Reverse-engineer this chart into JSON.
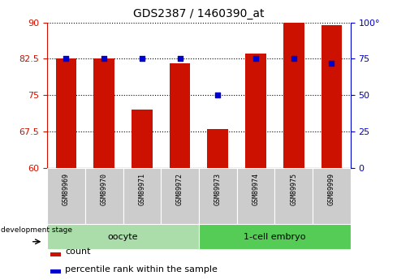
{
  "title": "GDS2387 / 1460390_at",
  "samples": [
    "GSM89969",
    "GSM89970",
    "GSM89971",
    "GSM89972",
    "GSM89973",
    "GSM89974",
    "GSM89975",
    "GSM89999"
  ],
  "groups": [
    {
      "label": "oocyte",
      "indices": [
        0,
        1,
        2,
        3
      ],
      "color": "#90EE90"
    },
    {
      "label": "1-cell embryo",
      "indices": [
        4,
        5,
        6,
        7
      ],
      "color": "#32CD32"
    }
  ],
  "count_values": [
    82.5,
    82.5,
    72.0,
    81.5,
    68.0,
    83.5,
    90.0,
    89.5
  ],
  "percentile_values": [
    75,
    75,
    75,
    75,
    50,
    75,
    75,
    72
  ],
  "ymin": 60,
  "ymax": 90,
  "yticks_left": [
    60,
    67.5,
    75,
    82.5,
    90
  ],
  "yticks_right": [
    0,
    25,
    50,
    75,
    100
  ],
  "bar_color": "#CC1100",
  "blue_color": "#0000CC",
  "bg_color": "#FFFFFF",
  "grid_color": "#000000",
  "ylabel_left_color": "#CC1100",
  "ylabel_right_color": "#0000CC",
  "bar_width": 0.55,
  "blue_marker_size": 5,
  "group1_color": "#AADDAA",
  "group2_color": "#55CC55"
}
